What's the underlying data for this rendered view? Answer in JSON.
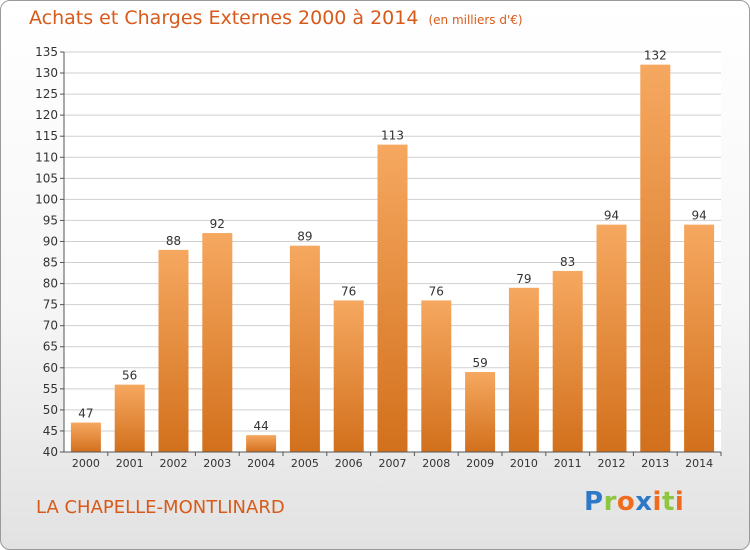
{
  "title": "Achats et Charges Externes 2000 à 2014",
  "unit_label": "(en milliers d'€)",
  "place": "LA CHAPELLE-MONTLINARD",
  "logo": {
    "text": "Proxiti",
    "letters": [
      "P",
      "r",
      "o",
      "x",
      "i",
      "t",
      "i"
    ]
  },
  "colors": {
    "bar_top": "#f6a860",
    "bar_bottom": "#d2701c",
    "title": "#d85a1a",
    "grid": "#cfcfcf"
  },
  "chart_data": {
    "type": "bar",
    "title": "Achats et Charges Externes 2000 à 2014",
    "subtitle": "(en milliers d'€)",
    "xlabel": "",
    "ylabel": "",
    "categories": [
      "2000",
      "2001",
      "2002",
      "2003",
      "2004",
      "2005",
      "2006",
      "2007",
      "2008",
      "2009",
      "2010",
      "2011",
      "2012",
      "2013",
      "2014"
    ],
    "values": [
      47,
      56,
      88,
      92,
      44,
      89,
      76,
      113,
      76,
      59,
      79,
      83,
      94,
      132,
      94
    ],
    "ylim": [
      40,
      135
    ],
    "yticks": [
      40,
      45,
      50,
      55,
      60,
      65,
      70,
      75,
      80,
      85,
      90,
      95,
      100,
      105,
      110,
      115,
      120,
      125,
      130,
      135
    ],
    "grid": true,
    "data_labels": true,
    "legend": "none"
  }
}
